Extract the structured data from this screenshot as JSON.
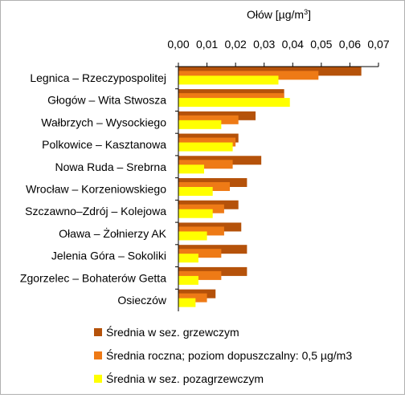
{
  "chart_data": {
    "type": "bar",
    "orientation": "horizontal",
    "axis_title_html": "Ołów [µg/m³]",
    "axis_title": {
      "main": "Ołów [µg/m",
      "sup": "3",
      "close": "]"
    },
    "xlim": [
      0,
      0.07
    ],
    "xticks": [
      "0,00",
      "0,01",
      "0,02",
      "0,03",
      "0,04",
      "0,05",
      "0,06",
      "0,07"
    ],
    "grid": false,
    "legend_position": "bottom",
    "categories": [
      "Legnica – Rzeczypospolitej",
      "Głogów – Wita Stwosza",
      "Wałbrzych – Wysockiego",
      "Polkowice – Kasztanowa",
      "Nowa Ruda – Srebrna",
      "Wrocław – Korzeniowskiego",
      "Szczawno–Zdrój – Kolejowa",
      "Oława – Żołnierzy AK",
      "Jelenia Góra – Sokoliki",
      "Zgorzelec – Bohaterów Getta",
      "Osieczów"
    ],
    "series": [
      {
        "name": "Średnia w sez. grzewczym",
        "color": "#b5520a",
        "values": [
          0.064,
          0.037,
          0.027,
          0.021,
          0.029,
          0.024,
          0.021,
          0.022,
          0.024,
          0.024,
          0.013
        ]
      },
      {
        "name": "Średnia roczna; poziom dopuszczalny: 0,5 µg/m3",
        "color": "#ee7a16",
        "values": [
          0.049,
          0.037,
          0.021,
          0.02,
          0.019,
          0.018,
          0.016,
          0.016,
          0.015,
          0.015,
          0.01
        ]
      },
      {
        "name": "Średnia w sez. pozagrzewczym",
        "color": "#ffff00",
        "values": [
          0.035,
          0.039,
          0.015,
          0.019,
          0.009,
          0.012,
          0.012,
          0.01,
          0.007,
          0.007,
          0.006
        ]
      }
    ]
  }
}
